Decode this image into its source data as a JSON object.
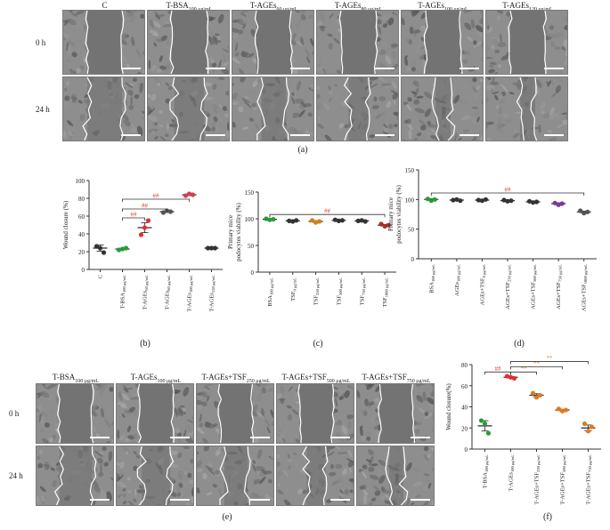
{
  "panel_a": {
    "columns": [
      "C",
      "T-BSA",
      "T-AGEs",
      "T-AGEs",
      "T-AGEs",
      "T-AGEs"
    ],
    "column_subs": [
      "",
      "100 μg/mL",
      "60 μg/mL",
      "80 μg/mL",
      "100 μg/mL",
      "120 μg/mL"
    ],
    "rows": [
      "0 h",
      "24 h"
    ],
    "label": "(a)"
  },
  "panel_e": {
    "columns": [
      "T-BSA",
      "T-AGEs",
      "T-AGEs+TSF",
      "T-AGEs+TSF",
      "T-AGEs+TSF"
    ],
    "column_subs": [
      "100 μg/mL",
      "100 μg/mL",
      "250 μg/mL",
      "500 μg/mL",
      "750 μg/mL"
    ],
    "rows": [
      "0 h",
      "24 h"
    ],
    "label": "(e)"
  },
  "labels": {
    "b": "(b)",
    "c": "(c)",
    "d": "(d)",
    "f": "(f)"
  },
  "colors": {
    "sig_red": "#e03a2a",
    "sig_orange": "#e08a3a",
    "green": "#2a9a3a",
    "red": "#e03030",
    "orange": "#e07a20",
    "purple": "#7a3a9a"
  },
  "chart_data": [
    {
      "id": "b",
      "type": "scatter",
      "ylabel": "Wound closure (%)",
      "ylim": [
        0,
        100
      ],
      "yticks": [
        0,
        20,
        40,
        60,
        80,
        100
      ],
      "categories": [
        "C",
        "T-BSA",
        "T-AGEs",
        "T-AGEs",
        "T-AGEs",
        "T-AGEs"
      ],
      "category_subs": [
        "",
        "100 μg/mL",
        "60 μg/mL",
        "80 μg/mL",
        "100 μg/mL",
        "120 μg/mL"
      ],
      "means": [
        24,
        23,
        47,
        65,
        84,
        24
      ],
      "points": [
        [
          26,
          24,
          19
        ],
        [
          22,
          23,
          24
        ],
        [
          39,
          47,
          55
        ],
        [
          64,
          66,
          65
        ],
        [
          83,
          85,
          84
        ],
        [
          24,
          24,
          24
        ]
      ],
      "point_colors": [
        "#333333",
        "#2a9a3a",
        "#e03030",
        "#555555",
        "#d04050",
        "#333333"
      ],
      "annotations": [
        {
          "from": 1,
          "to": 2,
          "text": "##",
          "y": 58
        },
        {
          "from": 1,
          "to": 3,
          "text": "##",
          "y": 68
        },
        {
          "from": 1,
          "to": 4,
          "text": "##",
          "y": 79
        }
      ]
    },
    {
      "id": "c",
      "type": "scatter",
      "ylabel": "Primary mice podocytes viability (%)",
      "ylim": [
        0,
        150
      ],
      "yticks": [
        0,
        50,
        100,
        150
      ],
      "categories": [
        "BSA",
        "TSF",
        "TSF",
        "TSF",
        "TSF",
        "TSF"
      ],
      "category_subs": [
        "100 μg/mL",
        "0 μg/mL",
        "250 μg/mL",
        "500 μg/mL",
        "750 μg/mL",
        "1000 μg/mL"
      ],
      "means": [
        99,
        96,
        95,
        97,
        96,
        88
      ],
      "points": [
        [
          100,
          98,
          99
        ],
        [
          96,
          95,
          97
        ],
        [
          97,
          93,
          95
        ],
        [
          98,
          96,
          97
        ],
        [
          96,
          97,
          95
        ],
        [
          90,
          86,
          88
        ]
      ],
      "point_colors": [
        "#2a9a3a",
        "#333333",
        "#d08020",
        "#333333",
        "#333333",
        "#a03030"
      ],
      "annotations": [
        {
          "from": 0,
          "to": 5,
          "text": "##",
          "y": 108
        }
      ]
    },
    {
      "id": "d",
      "type": "scatter",
      "ylabel": "Primary mice podocytes viability (%)",
      "ylim": [
        0,
        150
      ],
      "yticks": [
        0,
        50,
        100,
        150
      ],
      "categories": [
        "BSA",
        "AGEs",
        "AGEs+TSF",
        "AGEs+TSF",
        "AGEs+TSF",
        "AGEs+TSF",
        "AGEs+TSF"
      ],
      "category_subs": [
        "100 μg/mL",
        "100 μg/mL",
        "0 μg/mL",
        "250 μg/mL",
        "500 μg/mL",
        "750 μg/mL",
        "1000 μg/mL"
      ],
      "means": [
        100,
        99,
        99,
        98,
        96,
        93,
        79
      ],
      "points": [
        [
          101,
          98,
          100
        ],
        [
          99,
          100,
          98
        ],
        [
          99,
          98,
          100
        ],
        [
          99,
          97,
          98
        ],
        [
          97,
          95,
          96
        ],
        [
          94,
          91,
          93
        ],
        [
          81,
          77,
          79
        ]
      ],
      "point_colors": [
        "#2a9a3a",
        "#333333",
        "#333333",
        "#333333",
        "#333333",
        "#7a3a9a",
        "#555555"
      ],
      "annotations": [
        {
          "from": 0,
          "to": 6,
          "text": "##",
          "y": 111
        }
      ]
    },
    {
      "id": "f",
      "type": "scatter",
      "ylabel": "Wound closure(%)",
      "ylim": [
        0,
        80
      ],
      "yticks": [
        0,
        20,
        40,
        60,
        80
      ],
      "categories": [
        "T-BSA",
        "T-AGEs",
        "T-AGEs+TSF",
        "T-AGEs+TSF",
        "T-AGEs+TSF"
      ],
      "category_subs": [
        "100 μg/mL",
        "100 μg/mL",
        "250 μg/mL",
        "500 μg/mL",
        "750 μg/mL"
      ],
      "means": [
        22,
        68,
        51,
        37,
        20
      ],
      "points": [
        [
          27,
          24,
          15
        ],
        [
          69,
          68,
          67
        ],
        [
          53,
          49,
          51
        ],
        [
          38,
          36,
          37
        ],
        [
          24,
          17,
          21
        ]
      ],
      "point_colors": [
        "#2a9a3a",
        "#e03030",
        "#e07a20",
        "#e07a20",
        "#e07a20"
      ],
      "annotations": [
        {
          "from": 0,
          "to": 1,
          "text": "##",
          "y": 73
        },
        {
          "from": 1,
          "to": 2,
          "text": "**",
          "y": 73
        },
        {
          "from": 1,
          "to": 3,
          "text": "**",
          "y": 78
        },
        {
          "from": 1,
          "to": 4,
          "text": "**",
          "y": 83
        }
      ]
    }
  ]
}
